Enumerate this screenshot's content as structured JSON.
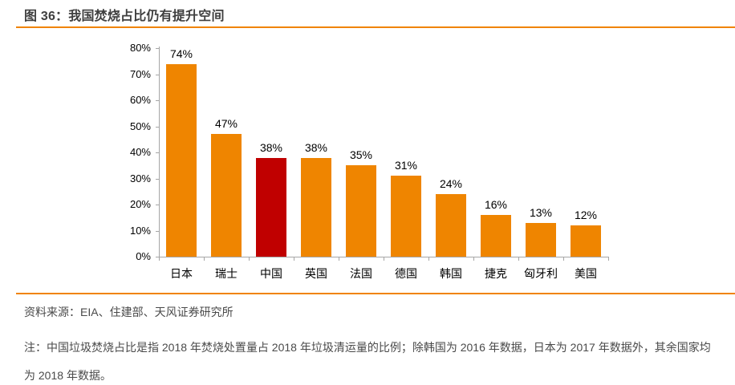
{
  "figure": {
    "title": "图 36：我国焚烧占比仍有提升空间"
  },
  "footer": {
    "source": "资料来源：EIA、住建部、天风证券研究所",
    "note": "注：中国垃圾焚烧占比是指 2018 年焚烧处置量占 2018 年垃圾清运量的比例；除韩国为 2016 年数据，日本为 2017 年数据外，其余国家均为 2018 年数据。"
  },
  "colors": {
    "bar_orange": "#EF8500",
    "highlight_red": "#C00000",
    "rule_orange": "#F08300",
    "axis_gray": "#A6A6A6"
  },
  "chart_data": {
    "type": "bar",
    "title": "图 36：我国焚烧占比仍有提升空间",
    "categories": [
      "日本",
      "瑞士",
      "中国",
      "英国",
      "法国",
      "德国",
      "韩国",
      "捷克",
      "匈牙利",
      "美国"
    ],
    "values": [
      74,
      47,
      38,
      38,
      35,
      31,
      24,
      16,
      13,
      12
    ],
    "value_labels": [
      "74%",
      "47%",
      "38%",
      "38%",
      "35%",
      "31%",
      "24%",
      "16%",
      "13%",
      "12%"
    ],
    "highlight_category": "中国",
    "highlight_index": 2,
    "xlabel": "",
    "ylabel": "",
    "ylim": [
      0,
      80
    ],
    "y_ticks": [
      "0%",
      "10%",
      "20%",
      "30%",
      "40%",
      "50%",
      "60%",
      "70%",
      "80%"
    ],
    "grid": false,
    "legend": "none"
  }
}
